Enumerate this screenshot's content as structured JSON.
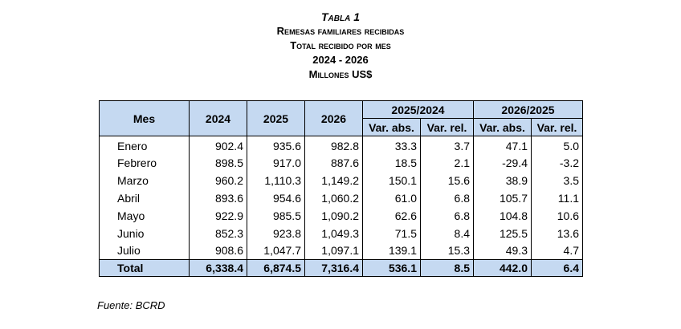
{
  "titles": {
    "line1": "Tabla 1",
    "line2": "Remesas familiares recibidas",
    "line3": "Total recibido por mes",
    "line4": "2024 - 2026",
    "line5": "Millones US$"
  },
  "table": {
    "headers": {
      "mes": "Mes",
      "y2024": "2024",
      "y2025": "2025",
      "y2026": "2026",
      "group1": "2025/2024",
      "group2": "2026/2025",
      "var_abs": "Var. abs.",
      "var_rel": "Var. rel."
    },
    "rows": [
      [
        "Enero",
        "902.4",
        "935.6",
        "982.8",
        "33.3",
        "3.7",
        "47.1",
        "5.0"
      ],
      [
        "Febrero",
        "898.5",
        "917.0",
        "887.6",
        "18.5",
        "2.1",
        "-29.4",
        "-3.2"
      ],
      [
        "Marzo",
        "960.2",
        "1,110.3",
        "1,149.2",
        "150.1",
        "15.6",
        "38.9",
        "3.5"
      ],
      [
        "Abril",
        "893.6",
        "954.6",
        "1,060.2",
        "61.0",
        "6.8",
        "105.7",
        "11.1"
      ],
      [
        "Mayo",
        "922.9",
        "985.5",
        "1,090.2",
        "62.6",
        "6.8",
        "104.8",
        "10.6"
      ],
      [
        "Junio",
        "852.3",
        "923.8",
        "1,049.3",
        "71.5",
        "8.4",
        "125.5",
        "13.6"
      ],
      [
        "Julio",
        "908.6",
        "1,047.7",
        "1,097.1",
        "139.1",
        "15.3",
        "49.3",
        "4.7"
      ]
    ],
    "total": [
      "Total",
      "6,338.4",
      "6,874.5",
      "7,316.4",
      "536.1",
      "8.5",
      "442.0",
      "6.4"
    ]
  },
  "source": "Fuente: BCRD"
}
